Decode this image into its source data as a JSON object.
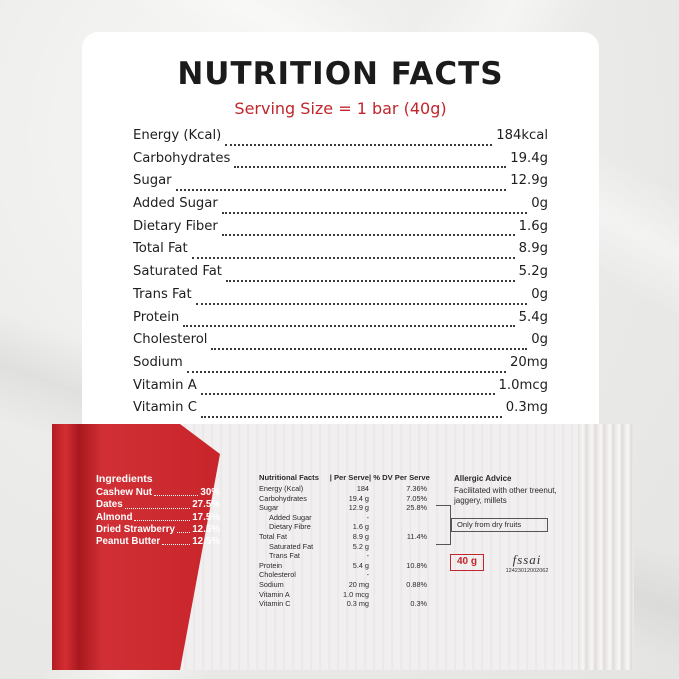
{
  "nutrition_card": {
    "title": "NUTRITION FACTS",
    "serving_size": "Serving Size = 1 bar (40g)",
    "rows": [
      {
        "label": "Energy (Kcal)",
        "value": "184kcal"
      },
      {
        "label": "Carbohydrates",
        "value": "19.4g"
      },
      {
        "label": "Sugar",
        "value": "12.9g"
      },
      {
        "label": "Added Sugar",
        "value": "0g"
      },
      {
        "label": "Dietary Fiber",
        "value": "1.6g"
      },
      {
        "label": "Total Fat",
        "value": "8.9g"
      },
      {
        "label": "Saturated Fat",
        "value": "5.2g"
      },
      {
        "label": "Trans Fat",
        "value": "0g"
      },
      {
        "label": "Protein",
        "value": "5.4g"
      },
      {
        "label": "Cholesterol",
        "value": "0g"
      },
      {
        "label": "Sodium",
        "value": "20mg"
      },
      {
        "label": "Vitamin A",
        "value": "1.0mcg"
      },
      {
        "label": "Vitamin C",
        "value": "0.3mg"
      }
    ]
  },
  "package": {
    "ingredients_heading": "Ingredients",
    "ingredients": [
      {
        "name": "Cashew Nut",
        "pct": "30%"
      },
      {
        "name": "Dates",
        "pct": "27.5%"
      },
      {
        "name": "Almond",
        "pct": "17.5%"
      },
      {
        "name": "Dried Strawberry",
        "pct": "12.5%"
      },
      {
        "name": "Peanut Butter",
        "pct": "12.5%"
      }
    ],
    "table_headers": [
      "Nutritional Facts",
      "| Per Serve",
      "| % DV Per Serve"
    ],
    "table_rows": [
      {
        "label": "Energy (Kcal)",
        "serve": "184",
        "dv": "7.36%",
        "indent": false
      },
      {
        "label": "Carbohydrates",
        "serve": "19.4 g",
        "dv": "7.05%",
        "indent": false
      },
      {
        "label": "Sugar",
        "serve": "12.9 g",
        "dv": "25.8%",
        "indent": false
      },
      {
        "label": "Added Sugar",
        "serve": "-",
        "dv": "",
        "indent": true
      },
      {
        "label": "Dietary Fibre",
        "serve": "1.6 g",
        "dv": "",
        "indent": true
      },
      {
        "label": "Total Fat",
        "serve": "8.9 g",
        "dv": "11.4%",
        "indent": false
      },
      {
        "label": "Saturated Fat",
        "serve": "5.2 g",
        "dv": "",
        "indent": true
      },
      {
        "label": "Trans Fat",
        "serve": "-",
        "dv": "",
        "indent": true
      },
      {
        "label": "Protein",
        "serve": "5.4 g",
        "dv": "10.8%",
        "indent": false
      },
      {
        "label": "Cholesterol",
        "serve": "-",
        "dv": "",
        "indent": false
      },
      {
        "label": "Sodium",
        "serve": "20 mg",
        "dv": "0.88%",
        "indent": false
      },
      {
        "label": "Vitamin A",
        "serve": "1.0 mcg",
        "dv": "",
        "indent": false
      },
      {
        "label": "Vitamin C",
        "serve": "0.3 mg",
        "dv": "0.3%",
        "indent": false
      }
    ],
    "allergic_heading": "Allergic Advice",
    "allergic_text": "Facilitated with other treenut, jaggery, millets",
    "dry_fruits_note": "Only from dry fruits",
    "weight": "40 g",
    "fssai_logo": "fssai",
    "fssai_license": "12423012002062"
  },
  "colors": {
    "brand_red": "#c0262b",
    "card_bg": "#ffffff",
    "text": "#1e1e1e"
  }
}
